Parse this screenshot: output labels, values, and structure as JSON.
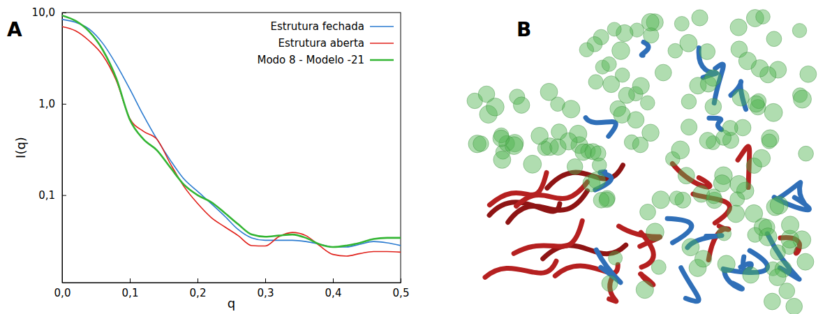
{
  "chart_data": {
    "type": "line",
    "panel": "A",
    "x_label": "q",
    "y_label": "I(q)",
    "log": "y",
    "legend": "upper right",
    "x": [
      0,
      0.02,
      0.04,
      0.06,
      0.08,
      0.1,
      0.12,
      0.14,
      0.16,
      0.18,
      0.2,
      0.22,
      0.24,
      0.26,
      0.28,
      0.3,
      0.32,
      0.34,
      0.36,
      0.38,
      0.4,
      0.42,
      0.44,
      0.46,
      0.48,
      0.5
    ],
    "xlim": [
      0,
      0.5
    ],
    "xticks": [
      {
        "value": 0,
        "label": "0,0"
      },
      {
        "value": 0.1,
        "label": "0,1"
      },
      {
        "value": 0.2,
        "label": "0,2"
      },
      {
        "value": 0.3,
        "label": "0,3"
      },
      {
        "value": 0.4,
        "label": "0,4"
      },
      {
        "value": 0.5,
        "label": "0,5"
      }
    ],
    "ylim": [
      0.011,
      10
    ],
    "yticks": [
      {
        "value": 0.1,
        "label": "0,1"
      },
      {
        "value": 1,
        "label": "1,0"
      },
      {
        "value": 10,
        "label": "10,0"
      }
    ],
    "series": [
      {
        "name": "Estrutura fechada",
        "color": "#2b7bd0",
        "values": [
          8.4,
          7.8,
          6.6,
          4.6,
          2.7,
          1.45,
          0.75,
          0.41,
          0.24,
          0.15,
          0.11,
          0.081,
          0.059,
          0.042,
          0.034,
          0.032,
          0.032,
          0.032,
          0.031,
          0.029,
          0.027,
          0.027,
          0.029,
          0.031,
          0.03,
          0.028
        ]
      },
      {
        "name": "Estrutura aberta",
        "color": "#e0201a",
        "values": [
          7.0,
          6.3,
          4.9,
          3.4,
          1.8,
          0.69,
          0.5,
          0.41,
          0.22,
          0.124,
          0.081,
          0.057,
          0.045,
          0.036,
          0.028,
          0.0277,
          0.035,
          0.039,
          0.036,
          0.028,
          0.0224,
          0.0215,
          0.0229,
          0.0241,
          0.0241,
          0.0237
        ]
      },
      {
        "name": "Modo 8 - Modelo -21",
        "color": "#33b533",
        "values": [
          9.3,
          8.1,
          6.2,
          3.9,
          1.9,
          0.67,
          0.41,
          0.31,
          0.2,
          0.13,
          0.1,
          0.084,
          0.064,
          0.048,
          0.037,
          0.035,
          0.036,
          0.037,
          0.034,
          0.029,
          0.027,
          0.028,
          0.03,
          0.033,
          0.034,
          0.034
        ]
      }
    ]
  },
  "figure_b": {
    "panel": "B"
  }
}
